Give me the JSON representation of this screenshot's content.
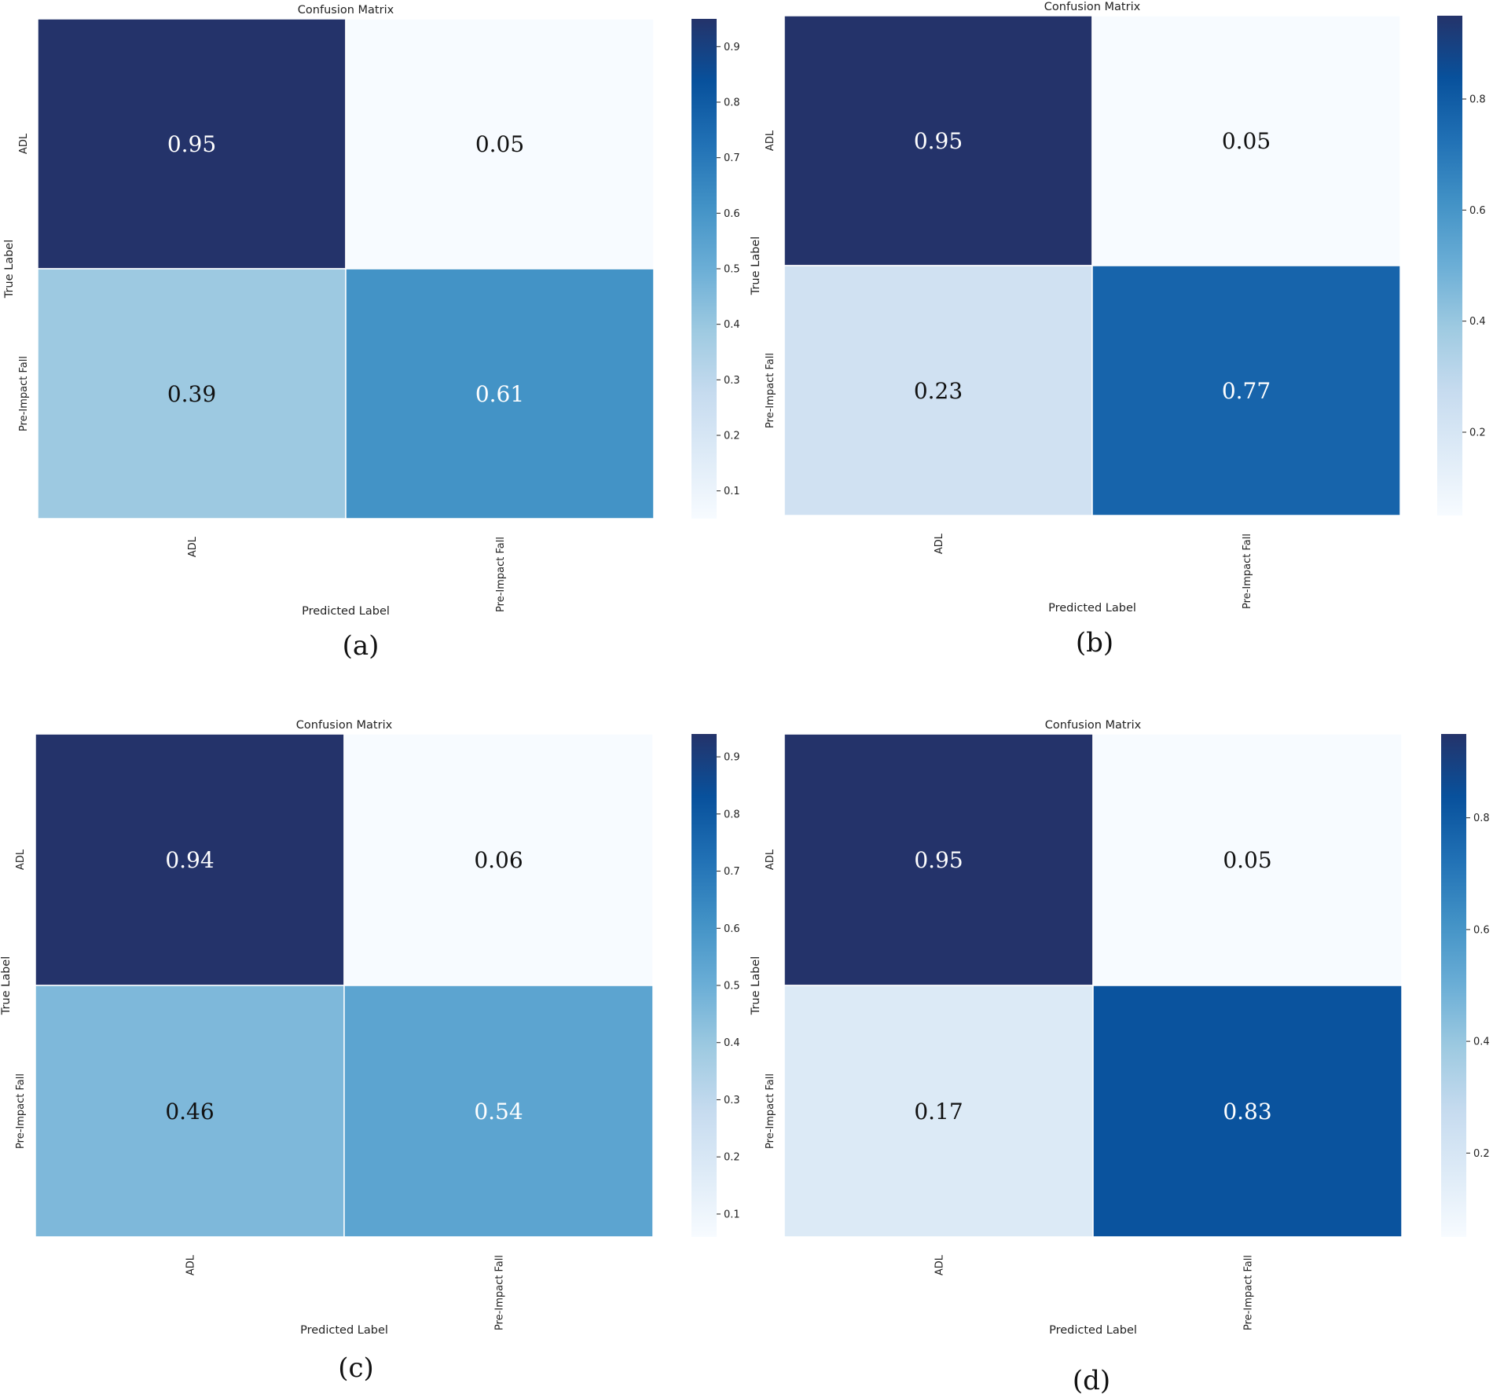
{
  "colormap": [
    "#f7fbff",
    "#deebf7",
    "#c6dbef",
    "#9ecae1",
    "#6baed6",
    "#4292c6",
    "#2171b5",
    "#08519c",
    "#24336a"
  ],
  "chart_data": [
    {
      "type": "heatmap",
      "caption": "(a)",
      "title": "Confusion Matrix",
      "xlabel": "Predicted Label",
      "ylabel": "True Label",
      "x_categories": [
        "ADL",
        "Pre-Impact Fall"
      ],
      "y_categories": [
        "ADL",
        "Pre-Impact Fall"
      ],
      "values": [
        [
          0.95,
          0.05
        ],
        [
          0.39,
          0.61
        ]
      ],
      "colorbar": {
        "range": [
          0.05,
          0.95
        ],
        "ticks": [
          "0.1",
          "0.2",
          "0.3",
          "0.4",
          "0.5",
          "0.6",
          "0.7",
          "0.8",
          "0.9"
        ]
      }
    },
    {
      "type": "heatmap",
      "caption": "(b)",
      "title": "Confusion Matrix",
      "xlabel": "Predicted Label",
      "ylabel": "True Label",
      "x_categories": [
        "ADL",
        "Pre-Impact Fall"
      ],
      "y_categories": [
        "ADL",
        "Pre-Impact Fall"
      ],
      "values": [
        [
          0.95,
          0.05
        ],
        [
          0.23,
          0.77
        ]
      ],
      "colorbar": {
        "range": [
          0.05,
          0.95
        ],
        "ticks": [
          "0.2",
          "0.4",
          "0.6",
          "0.8"
        ]
      }
    },
    {
      "type": "heatmap",
      "caption": "(c)",
      "title": "Confusion Matrix",
      "xlabel": "Predicted Label",
      "ylabel": "True Label",
      "x_categories": [
        "ADL",
        "Pre-Impact Fall"
      ],
      "y_categories": [
        "ADL",
        "Pre-Impact Fall"
      ],
      "values": [
        [
          0.94,
          0.06
        ],
        [
          0.46,
          0.54
        ]
      ],
      "colorbar": {
        "range": [
          0.06,
          0.94
        ],
        "ticks": [
          "0.1",
          "0.2",
          "0.3",
          "0.4",
          "0.5",
          "0.6",
          "0.7",
          "0.8",
          "0.9"
        ]
      }
    },
    {
      "type": "heatmap",
      "caption": "(d)",
      "title": "Confusion Matrix",
      "xlabel": "Predicted Label",
      "ylabel": "True Label",
      "x_categories": [
        "ADL",
        "Pre-Impact Fall"
      ],
      "y_categories": [
        "ADL",
        "Pre-Impact Fall"
      ],
      "values": [
        [
          0.95,
          0.05
        ],
        [
          0.17,
          0.83
        ]
      ],
      "colorbar": {
        "range": [
          0.05,
          0.95
        ],
        "ticks": [
          "0.2",
          "0.4",
          "0.6",
          "0.8"
        ]
      }
    }
  ]
}
